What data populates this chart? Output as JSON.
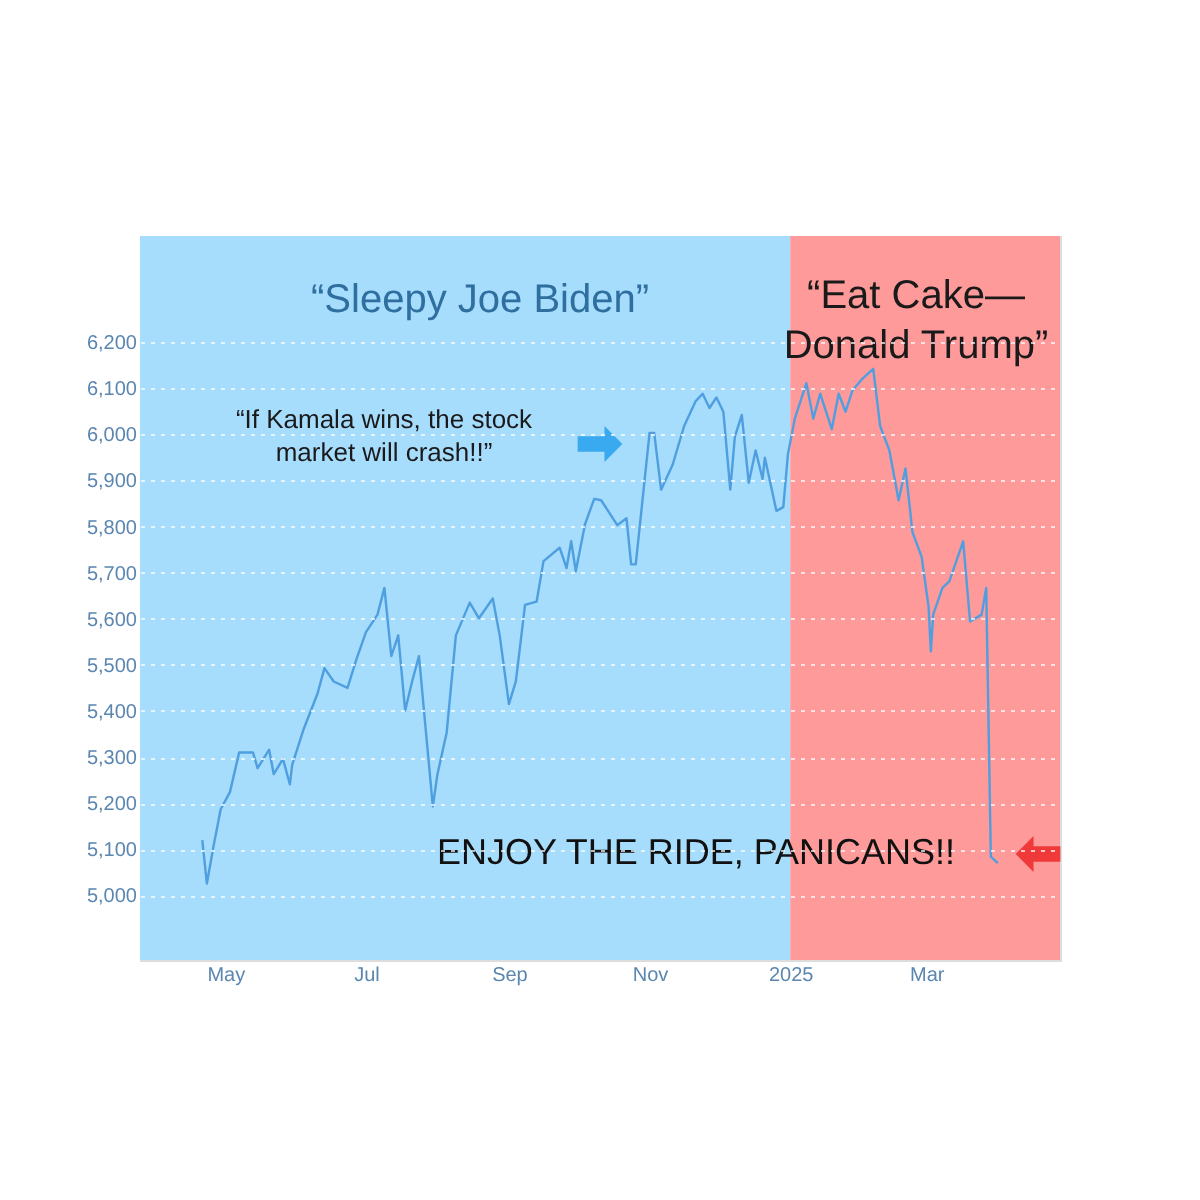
{
  "chart_data": {
    "type": "line",
    "x": [
      "2024-04-21",
      "2024-04-23",
      "2024-04-26",
      "2024-04-29",
      "2024-05-03",
      "2024-05-07",
      "2024-05-13",
      "2024-05-15",
      "2024-05-20",
      "2024-05-22",
      "2024-05-26",
      "2024-05-29",
      "2024-05-30",
      "2024-06-04",
      "2024-06-10",
      "2024-06-13",
      "2024-06-17",
      "2024-06-23",
      "2024-06-27",
      "2024-07-01",
      "2024-07-06",
      "2024-07-09",
      "2024-07-12",
      "2024-07-15",
      "2024-07-18",
      "2024-07-21",
      "2024-07-24",
      "2024-07-26",
      "2024-07-30",
      "2024-08-01",
      "2024-08-05",
      "2024-08-09",
      "2024-08-15",
      "2024-08-19",
      "2024-08-25",
      "2024-08-28",
      "2024-09-01",
      "2024-09-04",
      "2024-09-08",
      "2024-09-13",
      "2024-09-16",
      "2024-09-23",
      "2024-09-26",
      "2024-09-28",
      "2024-09-30",
      "2024-10-04",
      "2024-10-08",
      "2024-10-11",
      "2024-10-18",
      "2024-10-22",
      "2024-10-24",
      "2024-10-26",
      "2024-11-01",
      "2024-11-03",
      "2024-11-06",
      "2024-11-11",
      "2024-11-16",
      "2024-11-21",
      "2024-11-24",
      "2024-11-27",
      "2024-11-30",
      "2024-12-03",
      "2024-12-06",
      "2024-12-08",
      "2024-12-11",
      "2024-12-14",
      "2024-12-17",
      "2024-12-20",
      "2024-12-21",
      "2024-12-26",
      "2024-12-29",
      "2024-12-31",
      "2025-01-03",
      "2025-01-08",
      "2025-01-11",
      "2025-01-14",
      "2025-01-19",
      "2025-01-22",
      "2025-01-25",
      "2025-01-28",
      "2025-02-01",
      "2025-02-06",
      "2025-02-09",
      "2025-02-13",
      "2025-02-17",
      "2025-02-20",
      "2025-02-23",
      "2025-02-27",
      "2025-03-02",
      "2025-03-03",
      "2025-03-04",
      "2025-03-08",
      "2025-03-11",
      "2025-03-17",
      "2025-03-20",
      "2025-03-25",
      "2025-03-27",
      "2025-03-29",
      "2025-04-01"
    ],
    "series": [
      {
        "color": "#4f9fe0",
        "values": [
          5120,
          5026,
          5110,
          5187,
          5224,
          5310,
          5310,
          5276,
          5316,
          5263,
          5296,
          5241,
          5283,
          5361,
          5438,
          5493,
          5464,
          5450,
          5514,
          5571,
          5609,
          5667,
          5519,
          5564,
          5401,
          5464,
          5519,
          5409,
          5193,
          5263,
          5353,
          5564,
          5635,
          5601,
          5644,
          5564,
          5415,
          5464,
          5630,
          5637,
          5725,
          5754,
          5710,
          5768,
          5703,
          5805,
          5860,
          5857,
          5803,
          5818,
          5718,
          5718,
          6003,
          6003,
          5880,
          5934,
          6018,
          6072,
          6088,
          6057,
          6080,
          6049,
          5880,
          5995,
          6042,
          5895,
          5965,
          5903,
          5949,
          5834,
          5842,
          5957,
          6034,
          6111,
          6034,
          6088,
          6011,
          6088,
          6049,
          6095,
          6119,
          6142,
          6018,
          5965,
          5857,
          5926,
          5788,
          5734,
          5626,
          5529,
          5609,
          5667,
          5681,
          5768,
          5594,
          5609,
          5667,
          5084,
          5070
        ]
      }
    ],
    "xlim": [
      "2024-03-25",
      "2025-04-28"
    ],
    "xticks": [
      {
        "value": "2024-05-01",
        "label": "May"
      },
      {
        "value": "2024-07-01",
        "label": "Jul"
      },
      {
        "value": "2024-09-01",
        "label": "Sep"
      },
      {
        "value": "2024-11-01",
        "label": "Nov"
      },
      {
        "value": "2025-01-01",
        "label": "2025"
      },
      {
        "value": "2025-03-01",
        "label": "Mar"
      }
    ],
    "ylim": [
      4860,
      6430
    ],
    "yticks": [
      {
        "value": 5000,
        "label": "5,000"
      },
      {
        "value": 5100,
        "label": "5,100"
      },
      {
        "value": 5200,
        "label": "5,200"
      },
      {
        "value": 5300,
        "label": "5,300"
      },
      {
        "value": 5400,
        "label": "5,400"
      },
      {
        "value": 5500,
        "label": "5,500"
      },
      {
        "value": 5600,
        "label": "5,600"
      },
      {
        "value": 5700,
        "label": "5,700"
      },
      {
        "value": 5800,
        "label": "5,800"
      },
      {
        "value": 5900,
        "label": "5,900"
      },
      {
        "value": 6000,
        "label": "6,000"
      },
      {
        "value": 6100,
        "label": "6,100"
      },
      {
        "value": 6200,
        "label": "6,200"
      }
    ],
    "bands": [
      {
        "axis": "x",
        "from": "2024-03-25",
        "to": "2025-01-01",
        "color": "#a6dcfc"
      },
      {
        "axis": "x",
        "from": "2025-01-01",
        "to": "2025-04-28",
        "color": "#ff9a9a"
      }
    ],
    "annotations": [
      "“Sleepy Joe Biden”",
      "“Eat Cake—\nDonald Trump”",
      "“If Kamala wins, the stock\nmarket will crash!!”",
      "ENJOY THE RIDE, PANICANS!!"
    ],
    "grid": "y",
    "line_style": "solid",
    "marker": "none"
  }
}
